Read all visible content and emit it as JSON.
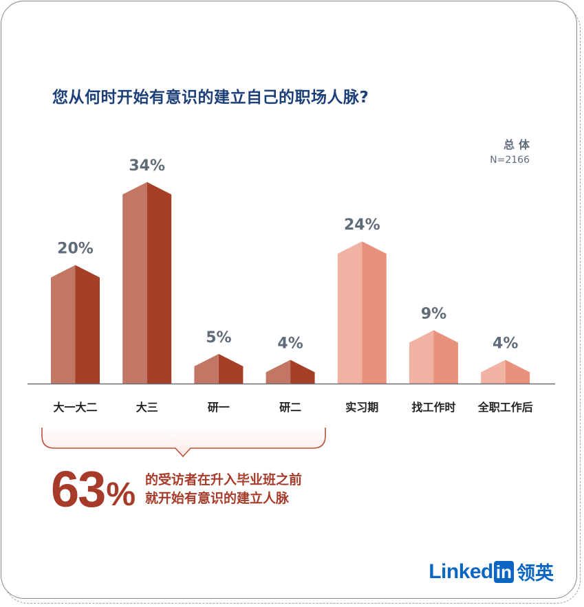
{
  "title": "您从何时开始有意识的建立自己的职场人脉?",
  "sample": {
    "group": "总体",
    "n": "N=2166"
  },
  "colors": {
    "before_light": "#c27765",
    "before_dark": "#a53f28",
    "after_light": "#f0b2a3",
    "after_dark": "#e8917c",
    "title": "#1c3f78",
    "value_label": "#5f6b78",
    "accent": "#a63b2a"
  },
  "chart_data": {
    "type": "bar",
    "categories": [
      "大一大二",
      "大三",
      "研一",
      "研二",
      "实习期",
      "找工作时",
      "全职工作后"
    ],
    "values": [
      20,
      34,
      5,
      4,
      24,
      9,
      4
    ],
    "value_labels": [
      "20%",
      "34%",
      "5%",
      "4%",
      "24%",
      "9%",
      "4%"
    ],
    "groups": [
      "before",
      "before",
      "before",
      "before",
      "after",
      "after",
      "after"
    ],
    "title": "您从何时开始有意识的建立自己的职场人脉?",
    "xlabel": "",
    "ylabel": "",
    "grid": false
  },
  "highlight": {
    "number": "63",
    "percent_sign": "%",
    "line1": "的受访者在升入毕业班之前",
    "line2": "就开始有意识的建立人脉"
  },
  "brand": {
    "word": "Linked",
    "in": "in",
    "cn": "领英"
  }
}
